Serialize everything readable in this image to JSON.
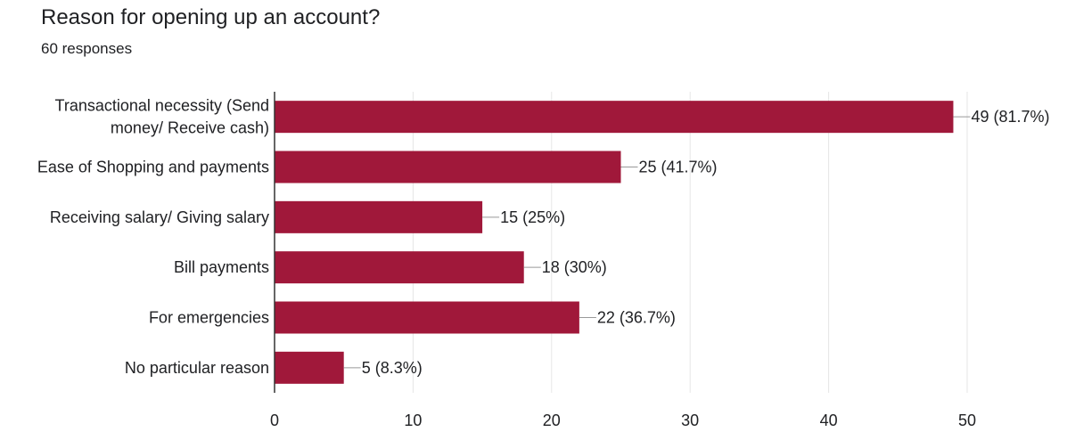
{
  "form": {
    "question": "Reason for opening up an account?",
    "responses": "60 responses"
  },
  "colors": {
    "bar": "#a0183a",
    "grid": "#e6e6e6",
    "axis": "#333333",
    "leader": "#999999"
  },
  "chart_data": {
    "type": "bar",
    "orientation": "horizontal",
    "title": "",
    "xlabel": "",
    "ylabel": "",
    "categories": [
      [
        "Transactional necessity (Send",
        "money/ Receive cash)"
      ],
      [
        "Ease of Shopping and payments"
      ],
      [
        "Receiving salary/ Giving salary"
      ],
      [
        "Bill payments"
      ],
      [
        "For emergencies"
      ],
      [
        "No particular reason"
      ]
    ],
    "values": [
      49,
      25,
      15,
      18,
      22,
      5
    ],
    "data_labels": [
      "49 (81.7%)",
      "25 (41.7%)",
      "15 (25%)",
      "18 (30%)",
      "22 (36.7%)",
      "5 (8.3%)"
    ],
    "xlim": [
      0,
      50
    ],
    "xticks": [
      0,
      10,
      20,
      30,
      40,
      50
    ],
    "grid": true,
    "legend": "none"
  }
}
